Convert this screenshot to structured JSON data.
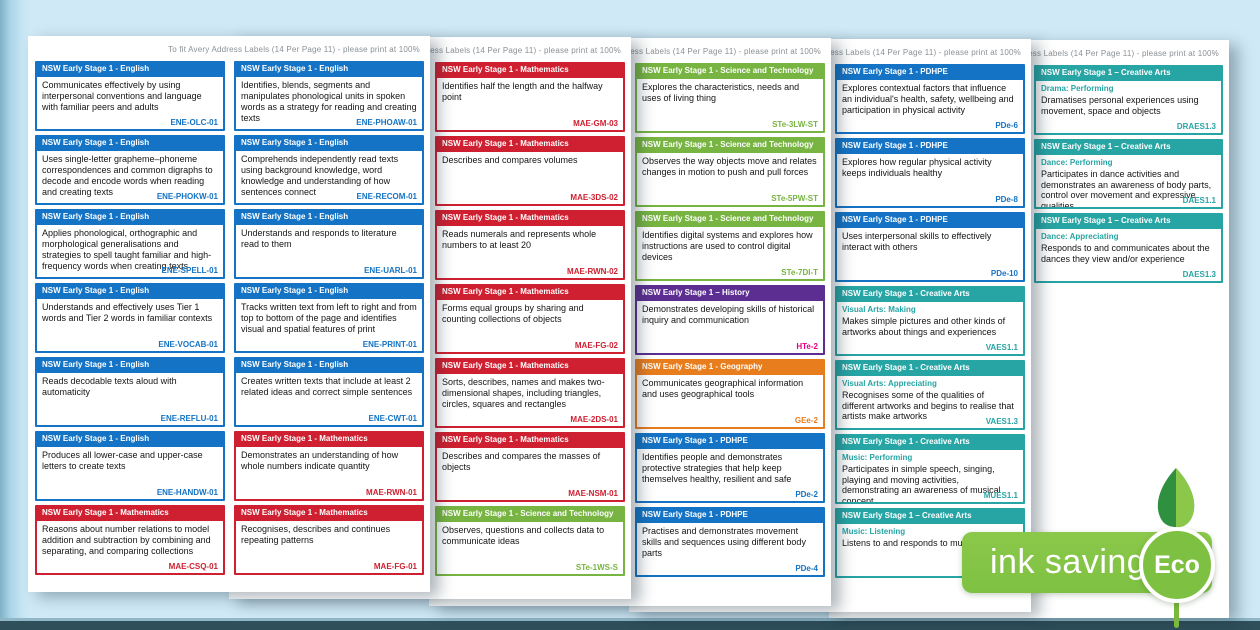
{
  "print_note": "To fit Avery Address Labels (14 Per Page 11) - please print at 100%",
  "badge": {
    "label": "ink saving",
    "eco": "Eco"
  },
  "colors": {
    "english": "#1473c4",
    "mathematics": "#ce2030",
    "science": "#77b441",
    "history": "#5c2e91",
    "history_code": "#e6007e",
    "geography": "#e87d1e",
    "pdhpe": "#1473c4",
    "creative": "#27a4a4",
    "badge_green": "#7ec142",
    "leaf_dark": "#2f9140",
    "leaf_light": "#8bc84a",
    "stem_green": "#7ab93c",
    "background": "#cfe9f6",
    "bottom_band": "#2f4f5b"
  },
  "sheets": [
    {
      "columns": [
        [
          {
            "subject": "english",
            "header": "NSW Early Stage 1 - English",
            "subtitle": "",
            "text": "Communicates effectively by using interpersonal conventions and language with familiar peers and adults",
            "code": "ENE-OLC-01"
          },
          {
            "subject": "english",
            "header": "NSW Early Stage 1 - English",
            "subtitle": "",
            "text": "Uses single-letter grapheme–phoneme correspondences and common digraphs to decode and encode words when reading and creating texts",
            "code": "ENE-PHOKW-01"
          },
          {
            "subject": "english",
            "header": "NSW Early Stage 1 - English",
            "subtitle": "",
            "text": "Applies phonological, orthographic and morphological generalisations and strategies to spell taught familiar and high-frequency words when creating texts",
            "code": "ENE-SPELL-01"
          },
          {
            "subject": "english",
            "header": "NSW Early Stage 1 - English",
            "subtitle": "",
            "text": "Understands and effectively uses Tier 1 words and Tier 2 words in familiar contexts",
            "code": "ENE-VOCAB-01"
          },
          {
            "subject": "english",
            "header": "NSW Early Stage 1 - English",
            "subtitle": "",
            "text": "Reads decodable texts aloud with automaticity",
            "code": "ENE-REFLU-01"
          },
          {
            "subject": "english",
            "header": "NSW Early Stage 1 - English",
            "subtitle": "",
            "text": "Produces all lower-case and upper-case letters to create texts",
            "code": "ENE-HANDW-01"
          },
          {
            "subject": "mathematics",
            "header": "NSW Early Stage 1 - Mathematics",
            "subtitle": "",
            "text": "Reasons about number relations to model addition and subtraction by combining and separating, and comparing collections",
            "code": "MAE-CSQ-01"
          }
        ],
        [
          {
            "subject": "english",
            "header": "NSW Early Stage 1 - English",
            "subtitle": "",
            "text": "Identifies, blends, segments and manipulates phonological units in spoken words as a strategy for reading and creating texts",
            "code": "ENE-PHOAW-01"
          },
          {
            "subject": "english",
            "header": "NSW Early Stage 1 - English",
            "subtitle": "",
            "text": "Comprehends independently read texts using background knowledge, word knowledge and understanding of how sentences connect",
            "code": "ENE-RECOM-01"
          },
          {
            "subject": "english",
            "header": "NSW Early Stage 1 - English",
            "subtitle": "",
            "text": "Understands and responds to literature read to them",
            "code": "ENE-UARL-01"
          },
          {
            "subject": "english",
            "header": "NSW Early Stage 1 - English",
            "subtitle": "",
            "text": "Tracks written text from left to right and from top to bottom of the page and identifies visual and spatial features of print",
            "code": "ENE-PRINT-01"
          },
          {
            "subject": "english",
            "header": "NSW Early Stage 1 - English",
            "subtitle": "",
            "text": "Creates written texts that include at least 2 related ideas and correct simple sentences",
            "code": "ENE-CWT-01"
          },
          {
            "subject": "mathematics",
            "header": "NSW Early Stage 1 - Mathematics",
            "subtitle": "",
            "text": "Demonstrates an understanding of how whole numbers indicate quantity",
            "code": "MAE-RWN-01"
          },
          {
            "subject": "mathematics",
            "header": "NSW Early Stage 1 - Mathematics",
            "subtitle": "",
            "text": "Recognises, describes and continues repeating patterns",
            "code": "MAE-FG-01"
          }
        ]
      ]
    },
    {
      "columns": [
        [],
        [
          {
            "subject": "mathematics",
            "header": "NSW Early Stage 1 - Mathematics",
            "subtitle": "",
            "text": "Identifies half the length and the halfway point",
            "code": "MAE-GM-03"
          },
          {
            "subject": "mathematics",
            "header": "NSW Early Stage 1 - Mathematics",
            "subtitle": "",
            "text": "Describes and compares volumes",
            "code": "MAE-3DS-02"
          },
          {
            "subject": "mathematics",
            "header": "NSW Early Stage 1 - Mathematics",
            "subtitle": "",
            "text": "Reads numerals and represents whole numbers to at least 20",
            "code": "MAE-RWN-02"
          },
          {
            "subject": "mathematics",
            "header": "NSW Early Stage 1 - Mathematics",
            "subtitle": "",
            "text": "Forms equal groups by sharing and counting collections of objects",
            "code": "MAE-FG-02"
          },
          {
            "subject": "mathematics",
            "header": "NSW Early Stage 1 - Mathematics",
            "subtitle": "",
            "text": "Sorts, describes, names and makes two-dimensional shapes, including triangles, circles, squares and rectangles",
            "code": "MAE-2DS-01"
          },
          {
            "subject": "mathematics",
            "header": "NSW Early Stage 1 - Mathematics",
            "subtitle": "",
            "text": "Describes and compares the masses of objects",
            "code": "MAE-NSM-01"
          },
          {
            "subject": "science",
            "header": "NSW Early Stage 1 - Science and Technology",
            "subtitle": "",
            "text": "Observes, questions and collects data to communicate ideas",
            "code": "STe-1WS-S"
          }
        ]
      ]
    },
    {
      "columns": [
        [],
        [
          {
            "subject": "science",
            "header": "NSW Early Stage 1 - Science and Technology",
            "subtitle": "",
            "text": "Explores the characteristics, needs and uses of living thing",
            "code": "STe-3LW-ST"
          },
          {
            "subject": "science",
            "header": "NSW Early Stage 1 - Science and Technology",
            "subtitle": "",
            "text": "Observes the way objects move and relates changes in motion to push and pull forces",
            "code": "STe-5PW-ST"
          },
          {
            "subject": "science",
            "header": "NSW Early Stage 1 - Science and Technology",
            "subtitle": "",
            "text": "Identifies digital systems and explores how instructions are used to control digital devices",
            "code": "STe-7DI-T"
          },
          {
            "subject": "history",
            "header": "NSW Early Stage 1 – History",
            "subtitle": "",
            "text": "Demonstrates developing skills of historical inquiry and communication",
            "code": "HTe-2"
          },
          {
            "subject": "geography",
            "header": "NSW Early Stage 1 - Geography",
            "subtitle": "",
            "text": "Communicates geographical information and uses geographical tools",
            "code": "GEe-2"
          },
          {
            "subject": "pdhpe",
            "header": "NSW Early Stage 1 - PDHPE",
            "subtitle": "",
            "text": "Identifies people and demonstrates protective strategies that help keep themselves healthy, resilient and safe",
            "code": "PDe-2"
          },
          {
            "subject": "pdhpe",
            "header": "NSW Early Stage 1 - PDHPE",
            "subtitle": "",
            "text": "Practises and demonstrates movement skills and sequences using different body parts",
            "code": "PDe-4"
          }
        ]
      ]
    },
    {
      "columns": [
        [],
        [
          {
            "subject": "pdhpe",
            "header": "NSW Early Stage 1 - PDHPE",
            "subtitle": "",
            "text": "Explores contextual factors that influence an individual's health, safety, wellbeing and participation in physical activity",
            "code": "PDe-6"
          },
          {
            "subject": "pdhpe",
            "header": "NSW Early Stage 1 - PDHPE",
            "subtitle": "",
            "text": "Explores how regular physical activity keeps individuals healthy",
            "code": "PDe-8"
          },
          {
            "subject": "pdhpe",
            "header": "NSW Early Stage 1 - PDHPE",
            "subtitle": "",
            "text": "Uses interpersonal skills to effectively interact with others",
            "code": "PDe-10"
          },
          {
            "subject": "creative",
            "header": "NSW Early Stage 1 - Creative Arts",
            "subtitle": "Visual Arts: Making",
            "text": "Makes simple pictures and other kinds of artworks about things and experiences",
            "code": "VAES1.1"
          },
          {
            "subject": "creative",
            "header": "NSW Early Stage 1 - Creative Arts",
            "subtitle": "Visual Arts: Appreciating",
            "text": "Recognises some of the qualities of different artworks and begins to realise that artists make artworks",
            "code": "VAES1.3"
          },
          {
            "subject": "creative",
            "header": "NSW Early Stage 1 - Creative Arts",
            "subtitle": "Music: Performing",
            "text": "Participates in simple speech, singing, playing and moving activities, demonstrating an awareness of musical concept",
            "code": "MUES1.1"
          },
          {
            "subject": "creative",
            "header": "NSW Early Stage 1 – Creative Arts",
            "subtitle": "Music: Listening",
            "text": "Listens to and responds to music",
            "code": ""
          }
        ]
      ]
    },
    {
      "columns": [
        [],
        [
          {
            "subject": "creative",
            "header": "NSW Early Stage 1 – Creative Arts",
            "subtitle": "Drama: Performing",
            "text": "Dramatises personal experiences using movement, space and objects",
            "code": "DRAES1.3"
          },
          {
            "subject": "creative",
            "header": "NSW Early Stage 1 – Creative Arts",
            "subtitle": "Dance: Performing",
            "text": "Participates in dance activities and demonstrates an awareness of body parts, control over movement and expressive qualities",
            "code": "DAES1.1"
          },
          {
            "subject": "creative",
            "header": "NSW Early Stage 1 – Creative Arts",
            "subtitle": "Dance: Appreciating",
            "text": "Responds to and communicates about the dances they view and/or experience",
            "code": "DAES1.3"
          }
        ]
      ]
    }
  ]
}
